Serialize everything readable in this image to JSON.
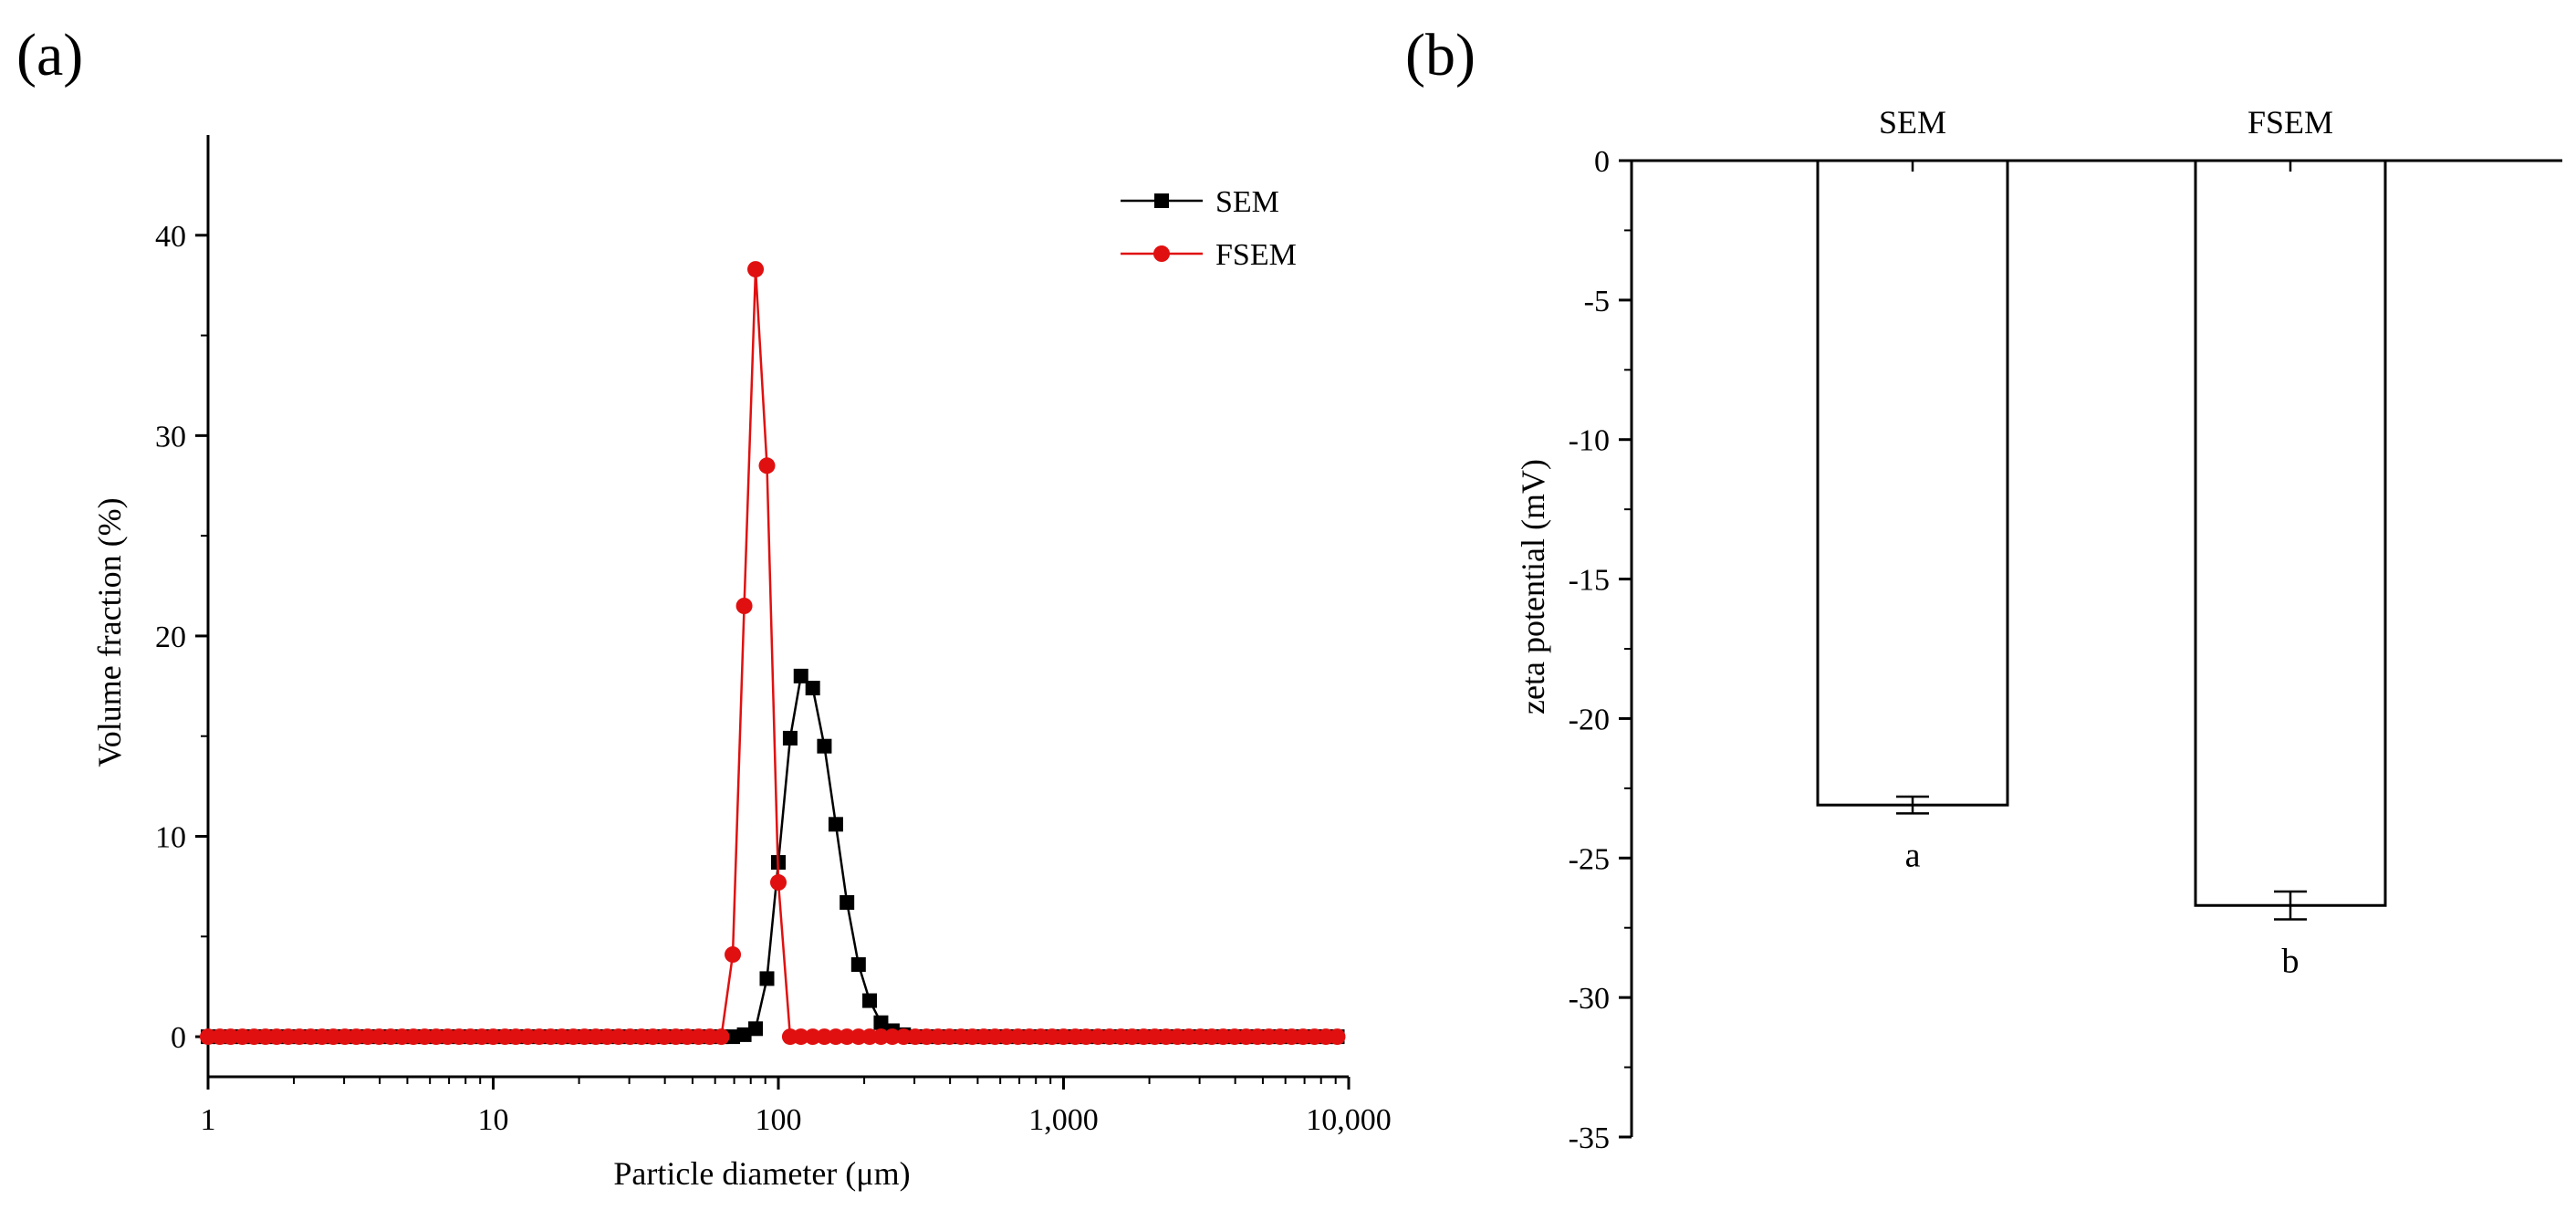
{
  "chart_data": [
    {
      "type": "scatter",
      "panel_label": "(a)",
      "xlabel": "Particle diameter (μm)",
      "ylabel": "Volume fraction (%)",
      "xscale": "log",
      "xlim": [
        1,
        10000
      ],
      "ylim": [
        -2,
        45
      ],
      "xticks": [
        1,
        10,
        100,
        1000,
        10000
      ],
      "xtick_labels": [
        "1",
        "10",
        "100",
        "1,000",
        "10,000"
      ],
      "yticks": [
        0,
        10,
        20,
        30,
        40
      ],
      "ytick_labels": [
        "0",
        "10",
        "20",
        "30",
        "40"
      ],
      "legend_position": "top-right",
      "series": [
        {
          "name": "SEM",
          "color": "#000000",
          "marker": "square",
          "x": [
            1,
            1.1,
            1.2,
            1.32,
            1.45,
            1.59,
            1.74,
            1.91,
            2.09,
            2.29,
            2.51,
            2.75,
            3.02,
            3.31,
            3.63,
            3.98,
            4.37,
            4.79,
            5.25,
            5.75,
            6.31,
            6.92,
            7.59,
            8.32,
            9.12,
            10,
            11,
            12,
            13.2,
            14.5,
            15.9,
            17.4,
            19.1,
            20.9,
            22.9,
            25.1,
            27.5,
            30.2,
            33.1,
            36.3,
            39.8,
            43.7,
            47.9,
            52.5,
            57.5,
            63.1,
            69.2,
            75.9,
            83.2,
            91.2,
            100,
            110,
            120,
            132,
            145,
            159,
            174,
            191,
            209,
            229,
            251,
            275,
            302,
            331,
            363,
            398,
            437,
            479,
            525,
            575,
            631,
            692,
            759,
            832,
            912,
            1000,
            1100,
            1200,
            1320,
            1450,
            1590,
            1740,
            1910,
            2090,
            2290,
            2510,
            2750,
            3020,
            3310,
            3630,
            3980,
            4370,
            4790,
            5250,
            5750,
            6310,
            6920,
            7590,
            8320,
            9120
          ],
          "y": [
            0,
            0,
            0,
            0,
            0,
            0,
            0,
            0,
            0,
            0,
            0,
            0,
            0,
            0,
            0,
            0,
            0,
            0,
            0,
            0,
            0,
            0,
            0,
            0,
            0,
            0,
            0,
            0,
            0,
            0,
            0,
            0,
            0,
            0,
            0,
            0,
            0,
            0,
            0,
            0,
            0,
            0,
            0,
            0,
            0,
            0,
            0,
            0.1,
            0.4,
            2.9,
            8.7,
            14.9,
            18.0,
            17.4,
            14.5,
            10.6,
            6.7,
            3.6,
            1.8,
            0.7,
            0.3,
            0.1,
            0,
            0,
            0,
            0,
            0,
            0,
            0,
            0,
            0,
            0,
            0,
            0,
            0,
            0,
            0,
            0,
            0,
            0,
            0,
            0,
            0,
            0,
            0,
            0,
            0,
            0,
            0,
            0,
            0,
            0,
            0,
            0,
            0,
            0,
            0,
            0,
            0,
            0
          ]
        },
        {
          "name": "FSEM",
          "color": "#e01010",
          "marker": "circle",
          "x": [
            1,
            1.1,
            1.2,
            1.32,
            1.45,
            1.59,
            1.74,
            1.91,
            2.09,
            2.29,
            2.51,
            2.75,
            3.02,
            3.31,
            3.63,
            3.98,
            4.37,
            4.79,
            5.25,
            5.75,
            6.31,
            6.92,
            7.59,
            8.32,
            9.12,
            10,
            11,
            12,
            13.2,
            14.5,
            15.9,
            17.4,
            19.1,
            20.9,
            22.9,
            25.1,
            27.5,
            30.2,
            33.1,
            36.3,
            39.8,
            43.7,
            47.9,
            52.5,
            57.5,
            63.1,
            69.2,
            75.9,
            83.2,
            91.2,
            100,
            110,
            120,
            132,
            145,
            159,
            174,
            191,
            209,
            229,
            251,
            275,
            302,
            331,
            363,
            398,
            437,
            479,
            525,
            575,
            631,
            692,
            759,
            832,
            912,
            1000,
            1100,
            1200,
            1320,
            1450,
            1590,
            1740,
            1910,
            2090,
            2290,
            2510,
            2750,
            3020,
            3310,
            3630,
            3980,
            4370,
            4790,
            5250,
            5750,
            6310,
            6920,
            7590,
            8320,
            9120
          ],
          "y": [
            0,
            0,
            0,
            0,
            0,
            0,
            0,
            0,
            0,
            0,
            0,
            0,
            0,
            0,
            0,
            0,
            0,
            0,
            0,
            0,
            0,
            0,
            0,
            0,
            0,
            0,
            0,
            0,
            0,
            0,
            0,
            0,
            0,
            0,
            0,
            0,
            0,
            0,
            0,
            0,
            0,
            0,
            0,
            0,
            0,
            0,
            4.1,
            21.5,
            38.3,
            28.5,
            7.7,
            0,
            0,
            0,
            0,
            0,
            0,
            0,
            0,
            0,
            0,
            0,
            0,
            0,
            0,
            0,
            0,
            0,
            0,
            0,
            0,
            0,
            0,
            0,
            0,
            0,
            0,
            0,
            0,
            0,
            0,
            0,
            0,
            0,
            0,
            0,
            0,
            0,
            0,
            0,
            0,
            0,
            0,
            0,
            0,
            0,
            0,
            0,
            0,
            0
          ]
        }
      ]
    },
    {
      "type": "bar",
      "panel_label": "(b)",
      "xlabel": "",
      "ylabel": "zeta potential (mV)",
      "ylim": [
        -35,
        0
      ],
      "yticks": [
        0,
        -5,
        -10,
        -15,
        -20,
        -25,
        -30,
        -35
      ],
      "ytick_labels": [
        "0",
        "-5",
        "-10",
        "-15",
        "-20",
        "-25",
        "-30",
        "-35"
      ],
      "categories": [
        "SEM",
        "FSEM"
      ],
      "values": [
        -23.1,
        -26.7
      ],
      "errors": [
        0.3,
        0.5
      ],
      "significance": [
        "a",
        "b"
      ],
      "bar_fill": "#ffffff",
      "bar_edge": "#000000"
    }
  ]
}
